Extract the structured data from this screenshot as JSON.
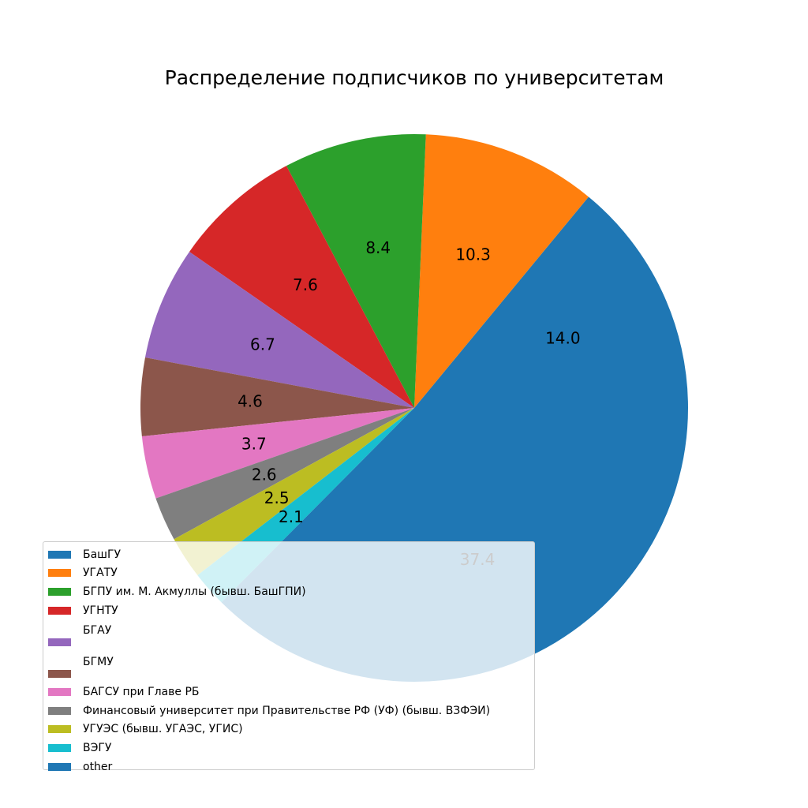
{
  "chart_data": {
    "type": "pie",
    "title": "Распределение подписчиков по университетам",
    "labels": [
      "БашГУ",
      "УГАТУ",
      "БГПУ им. М. Акмуллы (бывш. БашГПИ)",
      "УГНТУ",
      "БГАУ⁣",
      "БГМУ⁣",
      "БАГСУ при Главе РБ",
      "Финансовый университет при Правительстве РФ (УФ) (бывш. ВЗФЭИ)",
      "УГУЭС (бывш. УГАЭС, УГИС)",
      "ВЭГУ",
      "other"
    ],
    "values": [
      14.0,
      10.3,
      8.4,
      7.6,
      6.7,
      4.6,
      3.7,
      2.6,
      2.5,
      2.1,
      37.4
    ],
    "value_labels": [
      "14.0",
      "10.3",
      "8.4",
      "7.6",
      "6.7",
      "4.6",
      "3.7",
      "2.6",
      "2.5",
      "2.1",
      "37.4"
    ],
    "colors": [
      "#1f77b4",
      "#ff7f0e",
      "#2ca02c",
      "#d62728",
      "#9467bd",
      "#8c564b",
      "#e377c2",
      "#7f7f7f",
      "#bcbd22",
      "#17becf",
      "#1f77b4"
    ],
    "start_angle_deg": 0,
    "direction": "counterclockwise",
    "legend_position": "lower-left"
  }
}
